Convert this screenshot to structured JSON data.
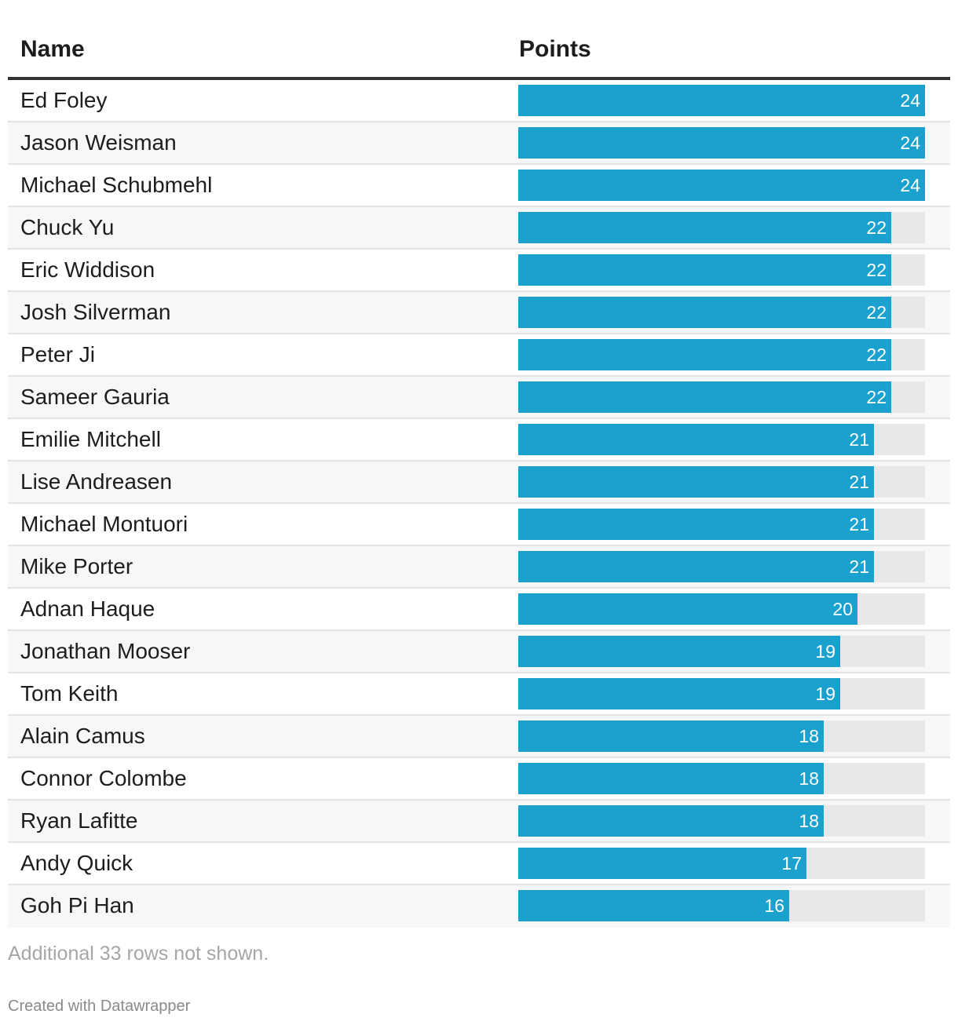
{
  "table": {
    "columns": [
      "Name",
      "Points"
    ]
  },
  "chart_data": {
    "type": "table",
    "xlabel": "Points",
    "scale_max": 24,
    "bar_color": "#1aa1ce",
    "track_color": "#e8e8e8",
    "rows": [
      {
        "name": "Ed Foley",
        "points": 24
      },
      {
        "name": "Jason Weisman",
        "points": 24
      },
      {
        "name": "Michael Schubmehl",
        "points": 24
      },
      {
        "name": "Chuck Yu",
        "points": 22
      },
      {
        "name": "Eric Widdison",
        "points": 22
      },
      {
        "name": "Josh Silverman",
        "points": 22
      },
      {
        "name": "Peter Ji",
        "points": 22
      },
      {
        "name": "Sameer Gauria",
        "points": 22
      },
      {
        "name": "Emilie Mitchell",
        "points": 21
      },
      {
        "name": "Lise Andreasen",
        "points": 21
      },
      {
        "name": "Michael Montuori",
        "points": 21
      },
      {
        "name": "Mike Porter",
        "points": 21
      },
      {
        "name": "Adnan Haque",
        "points": 20
      },
      {
        "name": "Jonathan Mooser",
        "points": 19
      },
      {
        "name": "Tom Keith",
        "points": 19
      },
      {
        "name": "Alain Camus",
        "points": 18
      },
      {
        "name": "Connor Colombe",
        "points": 18
      },
      {
        "name": "Ryan Lafitte",
        "points": 18
      },
      {
        "name": "Andy Quick",
        "points": 17
      },
      {
        "name": "Goh Pi Han",
        "points": 16
      }
    ]
  },
  "footer": {
    "notes": "Additional 33 rows not shown.",
    "credit": "Created with Datawrapper"
  }
}
